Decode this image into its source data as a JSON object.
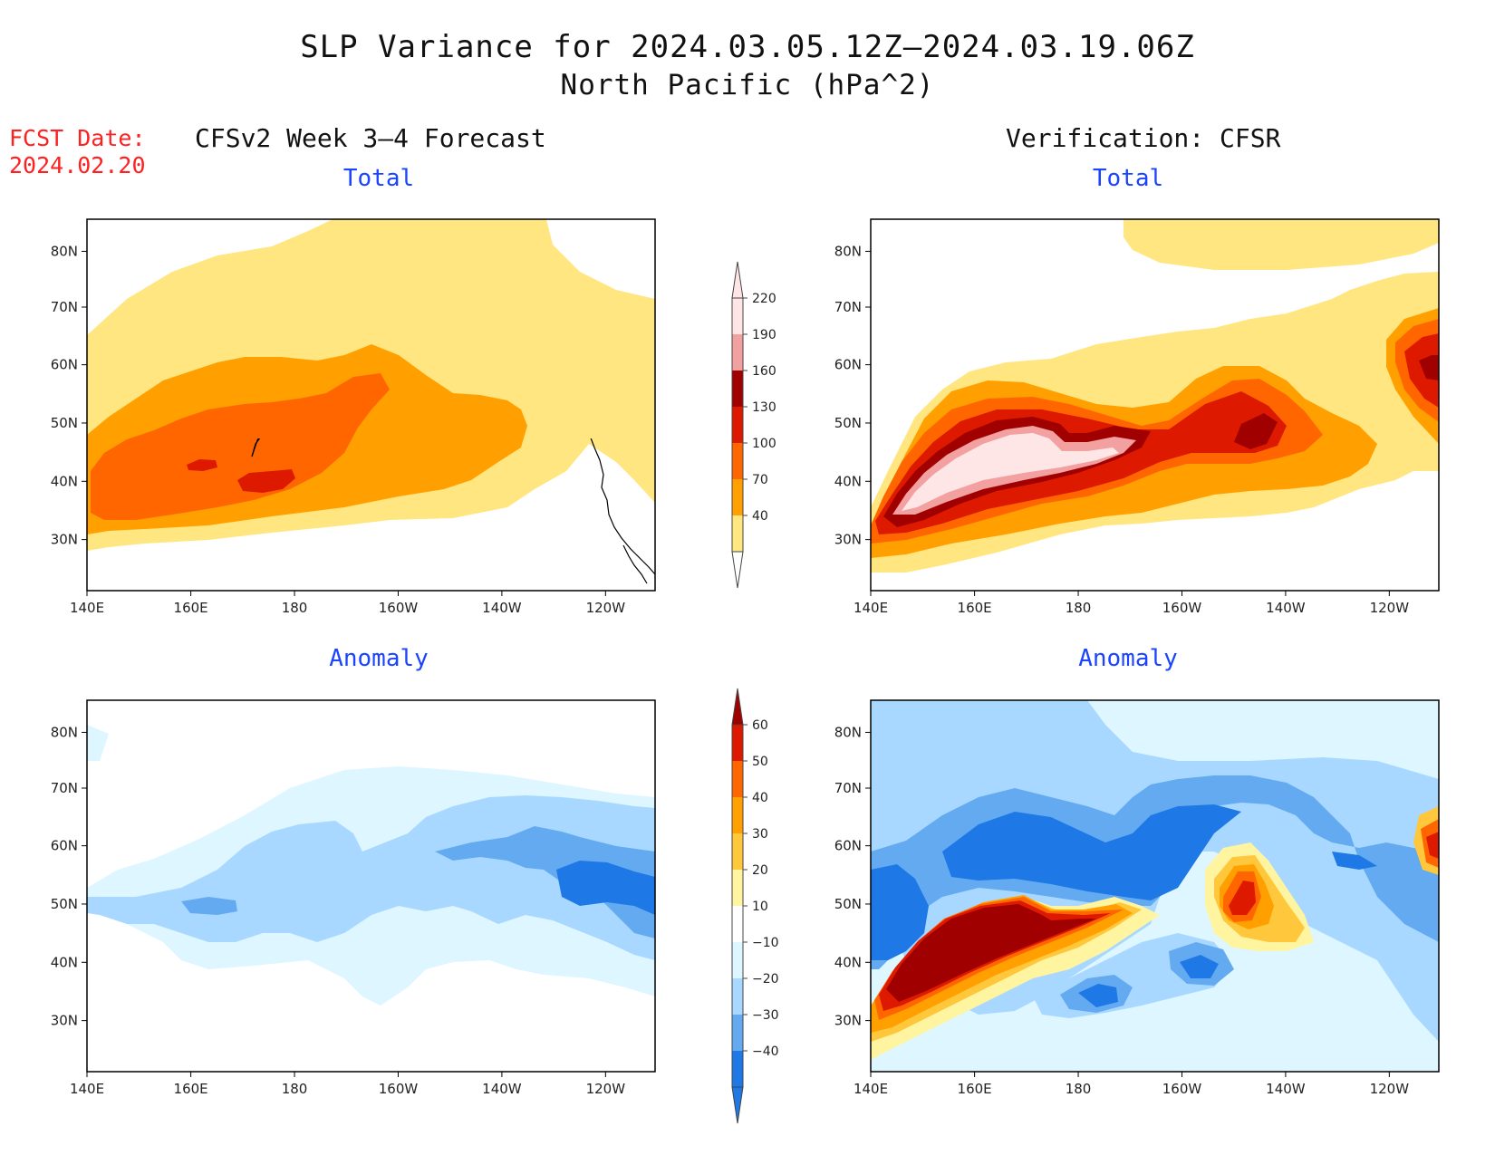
{
  "title": "SLP Variance for 2024.03.05.12Z–2024.03.19.06Z",
  "subtitle": "North Pacific (hPa^2)",
  "fcst_label": "FCST Date:",
  "fcst_date": "2024.02.20",
  "left_column_title": "CFSv2 Week 3–4 Forecast",
  "right_column_title": "Verification: CFSR",
  "panels": [
    {
      "id": "forecast-total",
      "title": "Total"
    },
    {
      "id": "verification-total",
      "title": "Total"
    },
    {
      "id": "forecast-anomaly",
      "title": "Anomaly"
    },
    {
      "id": "verification-anomaly",
      "title": "Anomaly"
    }
  ],
  "lon_ticks": [
    "140E",
    "160E",
    "180",
    "160W",
    "140W",
    "120W"
  ],
  "lat_ticks": [
    "80N",
    "70N",
    "60N",
    "50N",
    "40N",
    "30N"
  ],
  "total_colorbar": {
    "labels": [
      "220",
      "190",
      "160",
      "130",
      "100",
      "70",
      "40"
    ],
    "colors": [
      "#ffe6e6",
      "#f2a0a0",
      "#a00000",
      "#dd1a00",
      "#ff6600",
      "#ffa000",
      "#ffe680"
    ]
  },
  "anomaly_colorbar": {
    "labels": [
      "60",
      "50",
      "40",
      "30",
      "20",
      "10",
      "−10",
      "−20",
      "−30",
      "−40"
    ],
    "colors_top": "#a00000",
    "colors": [
      "#dd1a00",
      "#ff6600",
      "#ffa000",
      "#ffc83c",
      "#fff5a0",
      "#ffffff",
      "#ddf6ff",
      "#a8d8ff",
      "#64aaf0",
      "#1e78e6"
    ],
    "colors_bottom": "#1e78e6"
  }
}
